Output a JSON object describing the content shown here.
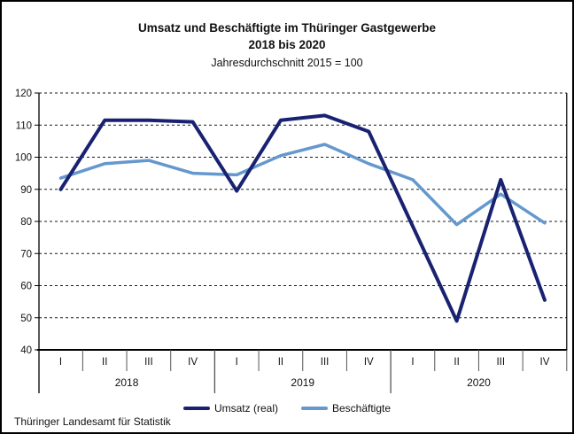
{
  "title": {
    "line1": "Umsatz und Beschäftigte im Thüringer Gastgewerbe",
    "line2": "2018 bis 2020",
    "subtitle": "Jahresdurchschnitt 2015 = 100"
  },
  "source": "Thüringer Landesamt für Statistik",
  "chart_data": {
    "type": "line",
    "title": "Umsatz und Beschäftigte im Thüringer Gastgewerbe 2018 bis 2020",
    "subtitle": "Jahresdurchschnitt 2015 = 100",
    "ylim": [
      40,
      120
    ],
    "yticks": [
      40,
      50,
      60,
      70,
      80,
      90,
      100,
      110,
      120
    ],
    "grid": "horizontal-dashed",
    "legend_position": "bottom",
    "x_groups": [
      {
        "year": "2018",
        "quarters": [
          "I",
          "II",
          "III",
          "IV"
        ]
      },
      {
        "year": "2019",
        "quarters": [
          "I",
          "II",
          "III",
          "IV"
        ]
      },
      {
        "year": "2020",
        "quarters": [
          "I",
          "II",
          "III",
          "IV"
        ]
      }
    ],
    "series": [
      {
        "name": "Umsatz (real)",
        "color": "#182270",
        "values": [
          90,
          111.5,
          111.5,
          111,
          89.5,
          111.5,
          113,
          108,
          78.5,
          49,
          93,
          55.5
        ]
      },
      {
        "name": "Beschäftigte",
        "color": "#6598cd",
        "values": [
          93.5,
          98,
          99,
          95,
          94.5,
          100.5,
          104,
          98,
          93,
          79,
          88.5,
          79.5
        ]
      }
    ]
  }
}
